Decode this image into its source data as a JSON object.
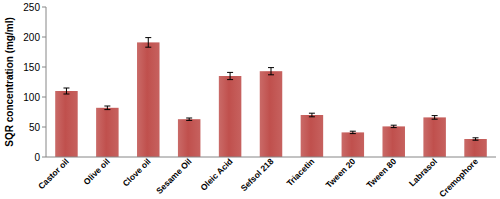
{
  "chart_data": {
    "type": "bar",
    "y_label": "SQR concentration (mg/ml)",
    "categories": [
      "Castor oil",
      "Olive oil",
      "Clove oil",
      "Sesame Oil",
      "Oleic Acid",
      "Sefsol 218",
      "Triacetin",
      "Tween 20",
      "Tween 80",
      "Labrasol",
      "Cremophore"
    ],
    "values": [
      110,
      82,
      191,
      63,
      135,
      143,
      70,
      41,
      51,
      66,
      30
    ],
    "errors": [
      5,
      3,
      8,
      2,
      6,
      6,
      3,
      2,
      2,
      3,
      2
    ],
    "color": "#c0504d",
    "ylim": [
      0,
      250
    ],
    "yticks": [
      0,
      50,
      100,
      150,
      200,
      250
    ],
    "grid": false
  }
}
